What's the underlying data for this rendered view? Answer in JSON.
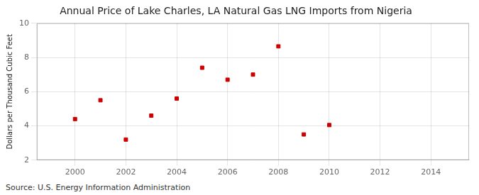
{
  "chart_data": {
    "type": "scatter",
    "title": "Annual Price of Lake Charles, LA Natural Gas LNG Imports from Nigeria",
    "ylabel": "Dollars per Thousand Cubic Feet",
    "source": "Source: U.S. Energy Information Administration",
    "x": [
      2000,
      2001,
      2002,
      2003,
      2004,
      2005,
      2006,
      2007,
      2008,
      2009,
      2010
    ],
    "values": [
      4.4,
      5.5,
      3.2,
      4.6,
      5.6,
      7.4,
      6.7,
      7.0,
      8.65,
      3.5,
      4.05
    ],
    "color": "#cc0000",
    "marker": "square",
    "xlim": [
      1998.5,
      2015.5
    ],
    "xticks": [
      2000,
      2002,
      2004,
      2006,
      2008,
      2010,
      2012,
      2014
    ],
    "ylim": [
      2,
      10
    ],
    "yticks": [
      2,
      4,
      6,
      8,
      10
    ],
    "grid": true
  }
}
